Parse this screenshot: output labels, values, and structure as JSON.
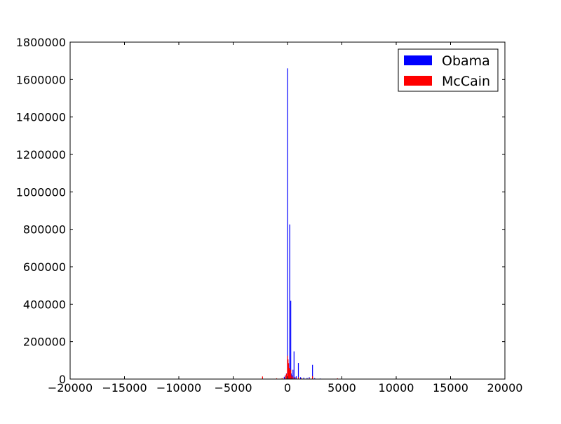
{
  "chart_data": {
    "type": "bar",
    "title": "",
    "xlabel": "",
    "ylabel": "",
    "xlim": [
      -20000,
      20000
    ],
    "ylim": [
      0,
      1800000
    ],
    "xticks": [
      -20000,
      -15000,
      -10000,
      -5000,
      0,
      5000,
      10000,
      15000,
      20000
    ],
    "xtick_labels": [
      "−20000",
      "−15000",
      "−10000",
      "−5000",
      "0",
      "5000",
      "10000",
      "15000",
      "20000"
    ],
    "yticks": [
      0,
      200000,
      400000,
      600000,
      800000,
      1000000,
      1200000,
      1400000,
      1600000,
      1800000
    ],
    "ytick_labels": [
      "0",
      "200000",
      "400000",
      "600000",
      "800000",
      "1000000",
      "1200000",
      "1400000",
      "1600000",
      "1800000"
    ],
    "grid": false,
    "legend_position": "top-right",
    "series": [
      {
        "name": "Obama",
        "color": "#0000ff",
        "points": [
          [
            -300,
            12000
          ],
          [
            -200,
            20000
          ],
          [
            -100,
            30000
          ],
          [
            0,
            1660000
          ],
          [
            50,
            60000
          ],
          [
            100,
            40000
          ],
          [
            150,
            30000
          ],
          [
            200,
            826000
          ],
          [
            250,
            50000
          ],
          [
            300,
            418000
          ],
          [
            350,
            30000
          ],
          [
            400,
            20000
          ],
          [
            500,
            50000
          ],
          [
            600,
            148000
          ],
          [
            700,
            10000
          ],
          [
            800,
            15000
          ],
          [
            1000,
            86000
          ],
          [
            1200,
            10000
          ],
          [
            1500,
            8000
          ],
          [
            1800,
            6000
          ],
          [
            2000,
            10000
          ],
          [
            2300,
            76000
          ],
          [
            2500,
            5000
          ],
          [
            3000,
            3000
          ],
          [
            4600,
            3000
          ]
        ]
      },
      {
        "name": "McCain",
        "color": "#ff0000",
        "points": [
          [
            -2300,
            14000
          ],
          [
            -1000,
            4000
          ],
          [
            -500,
            5000
          ],
          [
            -200,
            18000
          ],
          [
            -100,
            28000
          ],
          [
            0,
            125000
          ],
          [
            50,
            105000
          ],
          [
            100,
            85000
          ],
          [
            150,
            60000
          ],
          [
            200,
            55000
          ],
          [
            250,
            40000
          ],
          [
            300,
            50000
          ],
          [
            400,
            18000
          ],
          [
            500,
            12000
          ],
          [
            700,
            8000
          ],
          [
            1000,
            10000
          ],
          [
            1300,
            5000
          ],
          [
            2000,
            4000
          ],
          [
            2300,
            15000
          ],
          [
            4600,
            4000
          ]
        ]
      }
    ]
  }
}
